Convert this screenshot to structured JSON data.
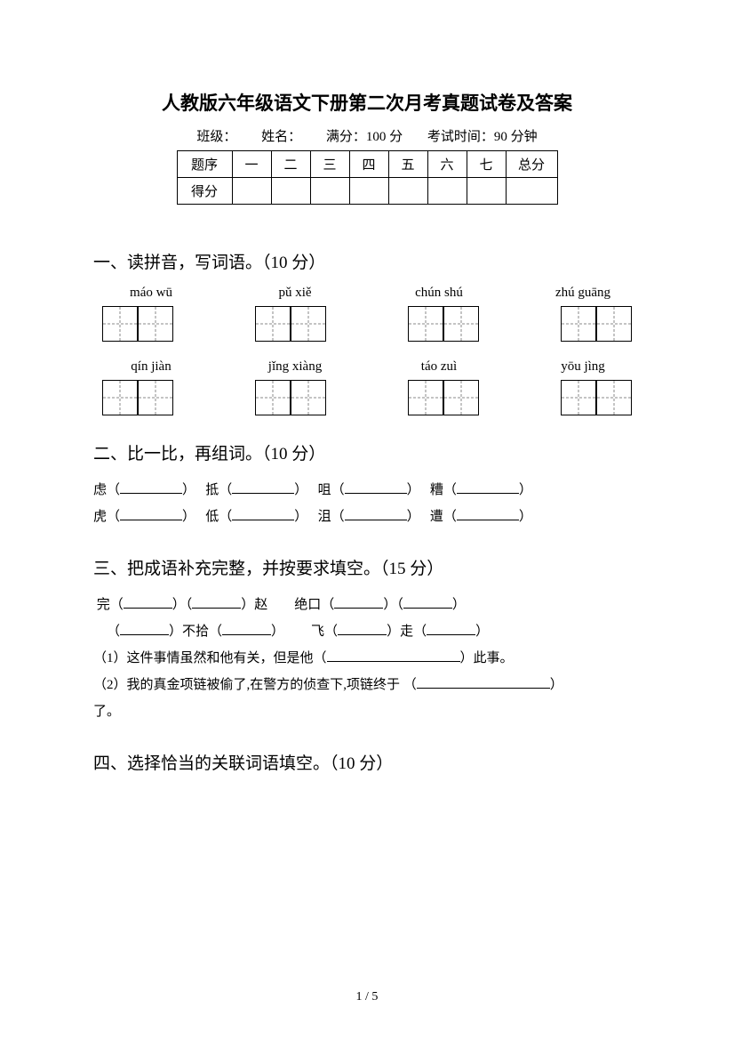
{
  "title": "人教版六年级语文下册第二次月考真题试卷及答案",
  "info": {
    "class_label": "班级：",
    "name_label": "姓名：",
    "fullscore": "满分：100 分",
    "time": "考试时间：90 分钟"
  },
  "score_table": {
    "row1": [
      "题序",
      "一",
      "二",
      "三",
      "四",
      "五",
      "六",
      "七",
      "总分"
    ],
    "row2_label": "得分"
  },
  "sections": {
    "s1": {
      "heading": "一、读拼音，写词语。（10 分）",
      "row1": [
        "máo wū",
        "pǔ xiě",
        "chún shú",
        "zhú guāng"
      ],
      "row2": [
        "qín jiàn",
        "jǐng xiàng",
        "táo zuì",
        "yōu jìng"
      ]
    },
    "s2": {
      "heading": "二、比一比，再组词。（10 分）",
      "pairs": [
        [
          "虑（",
          "）",
          "抵（",
          "）",
          "咀（",
          "）",
          "糟（",
          "）"
        ],
        [
          "虎（",
          "）",
          "低（",
          "）",
          "沮（",
          "）",
          "遭（",
          "）"
        ]
      ]
    },
    "s3": {
      "heading": "三、把成语补充完整，并按要求填空。（15 分）",
      "line1a": "完（",
      "line1b": "）（",
      "line1c": "）赵",
      "line1d": "绝口（",
      "line1e": "）（",
      "line1f": "）",
      "line2a": "（",
      "line2b": "）不拾（",
      "line2c": "）",
      "line2d": "飞（",
      "line2e": "）走（",
      "line2f": "）",
      "q1": "（1）这件事情虽然和他有关，但是他（",
      "q1_end": "）此事。",
      "q2": "（2）我的真金项链被偷了,在警方的侦查下,项链终于 （",
      "q2_end": "）",
      "q2_tail": "了。"
    },
    "s4": {
      "heading": "四、选择恰当的关联词语填空。（10 分）"
    }
  },
  "pagenum": "1 / 5"
}
